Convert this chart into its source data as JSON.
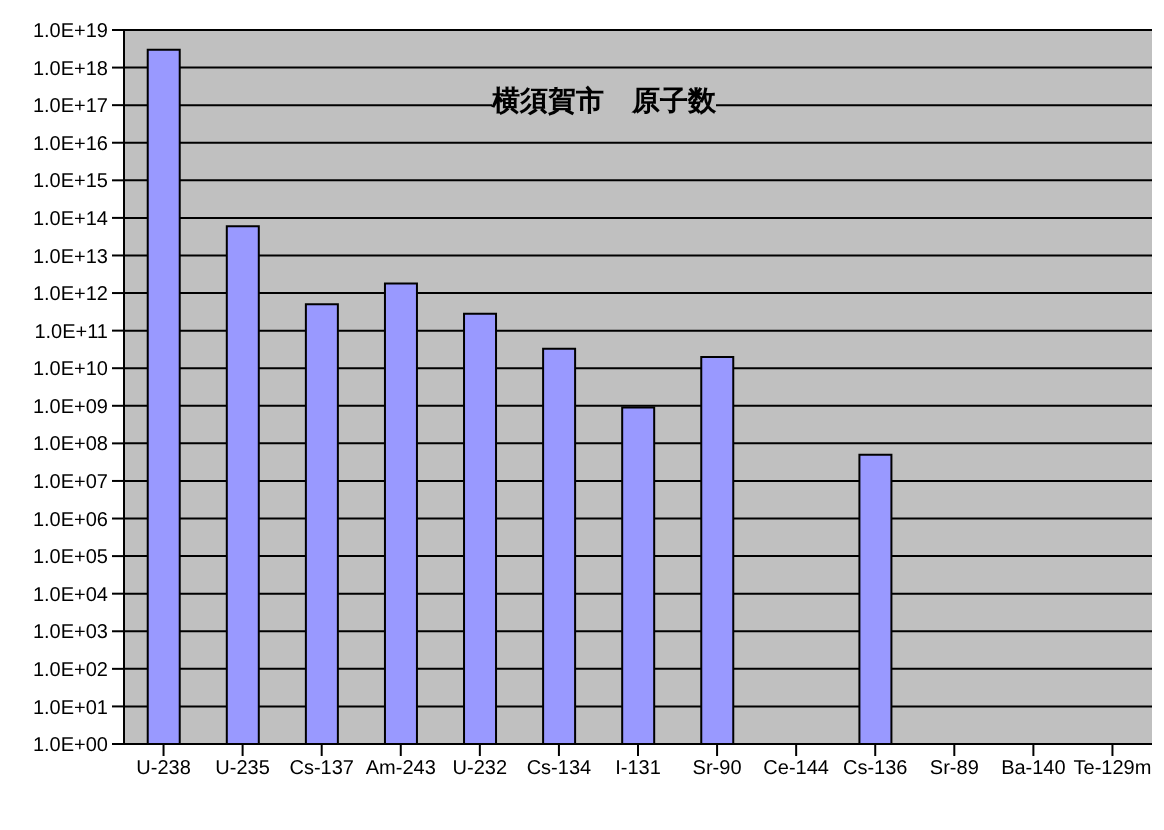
{
  "chart_data": {
    "type": "bar",
    "title": "横須賀市　原子数",
    "categories": [
      "U-238",
      "U-235",
      "Cs-137",
      "Am-243",
      "U-232",
      "Cs-134",
      "I-131",
      "Sr-90",
      "Ce-144",
      "Cs-136",
      "Sr-89",
      "Ba-140",
      "Te-129m"
    ],
    "values": [
      3e+18,
      60000000000000.0,
      500000000000.0,
      1800000000000.0,
      280000000000.0,
      33000000000.0,
      900000000.0,
      20000000000.0,
      null,
      50000000.0,
      null,
      null,
      null
    ],
    "color": "#9999ff",
    "log": "y",
    "grid": "y",
    "ylim": [
      1,
      1e+19
    ],
    "yticks": [
      {
        "value": 1,
        "label": "1.0E+00"
      },
      {
        "value": 10.0,
        "label": "1.0E+01"
      },
      {
        "value": 100.0,
        "label": "1.0E+02"
      },
      {
        "value": 1000.0,
        "label": "1.0E+03"
      },
      {
        "value": 10000.0,
        "label": "1.0E+04"
      },
      {
        "value": 100000.0,
        "label": "1.0E+05"
      },
      {
        "value": 1000000.0,
        "label": "1.0E+06"
      },
      {
        "value": 10000000.0,
        "label": "1.0E+07"
      },
      {
        "value": 100000000.0,
        "label": "1.0E+08"
      },
      {
        "value": 1000000000.0,
        "label": "1.0E+09"
      },
      {
        "value": 10000000000.0,
        "label": "1.0E+10"
      },
      {
        "value": 100000000000.0,
        "label": "1.0E+11"
      },
      {
        "value": 1000000000000.0,
        "label": "1.0E+12"
      },
      {
        "value": 10000000000000.0,
        "label": "1.0E+13"
      },
      {
        "value": 100000000000000.0,
        "label": "1.0E+14"
      },
      {
        "value": 1000000000000000.0,
        "label": "1.0E+15"
      },
      {
        "value": 1e+16,
        "label": "1.0E+16"
      },
      {
        "value": 1e+17,
        "label": "1.0E+17"
      },
      {
        "value": 1e+18,
        "label": "1.0E+18"
      },
      {
        "value": 1e+19,
        "label": "1.0E+19"
      }
    ]
  }
}
